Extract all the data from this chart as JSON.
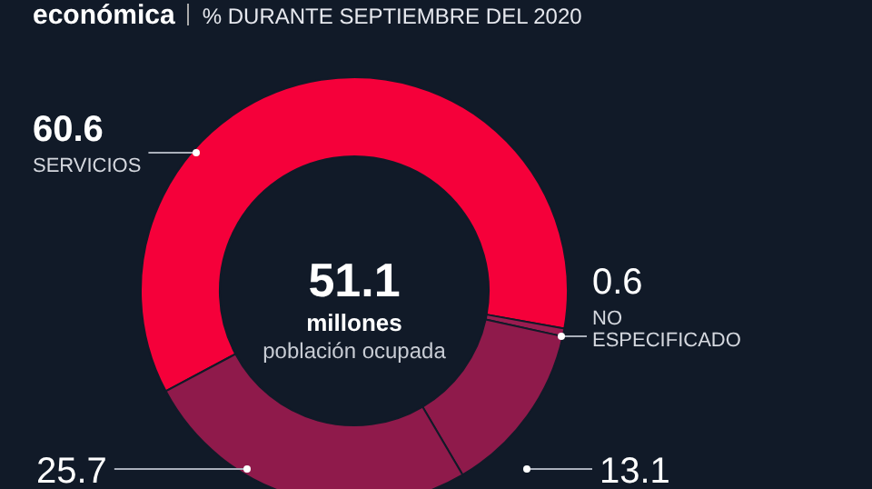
{
  "chart_data": {
    "type": "donut",
    "title": "económica",
    "subtitle": "% DURANTE SEPTIEMBRE DEL 2020",
    "categories": [
      "SERVICIOS",
      "NO ESPECIFICADO",
      null,
      null
    ],
    "values": [
      60.6,
      0.6,
      13.1,
      25.7
    ],
    "colors": [
      "#f5003a",
      "#9a1c50",
      "#8f1a4b",
      "#8f1a4b"
    ],
    "data_labels": true,
    "legend": false,
    "annotations": [
      "51.1",
      "millones",
      "población ocupada"
    ]
  }
}
